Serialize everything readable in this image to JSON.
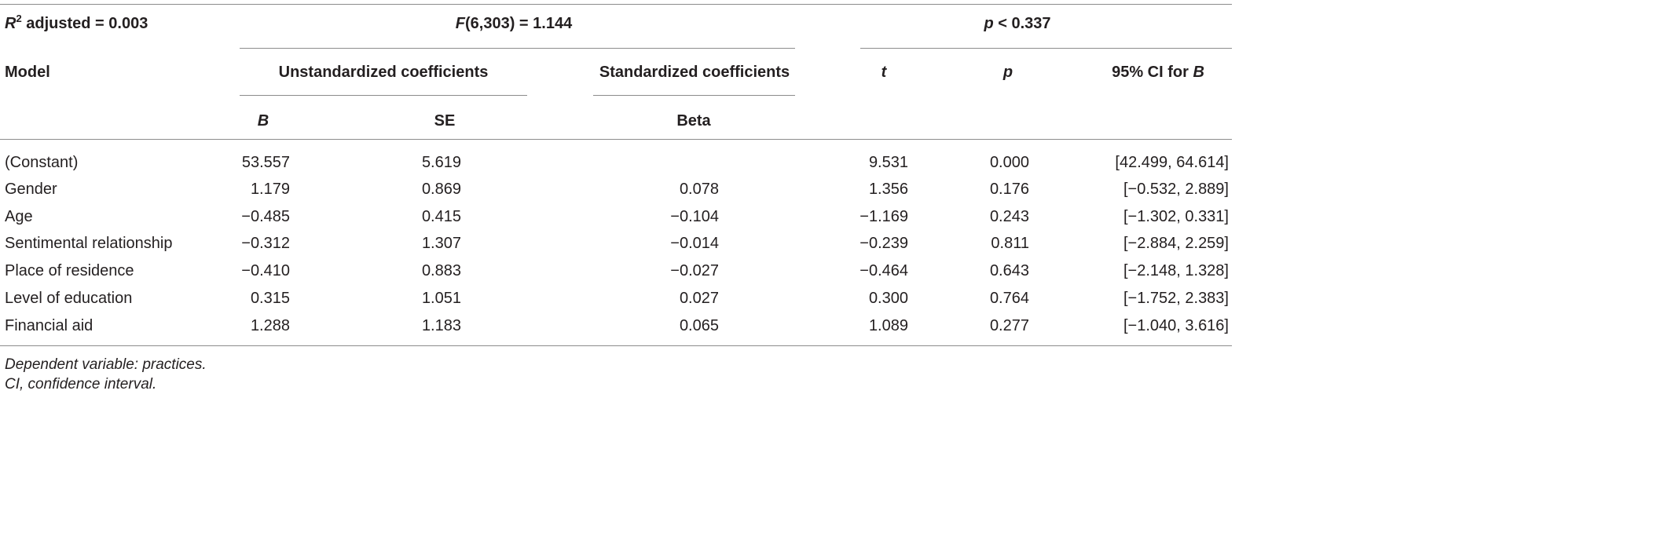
{
  "summary": {
    "r2_symbol": "R",
    "r2_sup": "2",
    "r2_rest": " adjusted = 0.003",
    "f_symbol": "F",
    "f_rest": "(6,303) = 1.144",
    "p_symbol": "p",
    "p_rest": " < 0.337"
  },
  "headers": {
    "model": "Model",
    "unstd": "Unstandardized coefficients",
    "std": "Standardized coefficients",
    "t": "t",
    "p": "p",
    "ci_prefix": "95% CI for ",
    "ci_b": "B",
    "b": "B",
    "se": "SE",
    "beta": "Beta"
  },
  "rows": [
    {
      "model": "(Constant)",
      "b": "53.557",
      "se": "5.619",
      "beta": "",
      "t": "9.531",
      "p": "0.000",
      "ci": "[42.499, 64.614]"
    },
    {
      "model": "Gender",
      "b": "1.179",
      "se": "0.869",
      "beta": "0.078",
      "t": "1.356",
      "p": "0.176",
      "ci": "[−0.532, 2.889]"
    },
    {
      "model": "Age",
      "b": "−0.485",
      "se": "0.415",
      "beta": "−0.104",
      "t": "−1.169",
      "p": "0.243",
      "ci": "[−1.302, 0.331]"
    },
    {
      "model": "Sentimental relationship",
      "b": "−0.312",
      "se": "1.307",
      "beta": "−0.014",
      "t": "−0.239",
      "p": "0.811",
      "ci": "[−2.884, 2.259]"
    },
    {
      "model": "Place of residence",
      "b": "−0.410",
      "se": "0.883",
      "beta": "−0.027",
      "t": "−0.464",
      "p": "0.643",
      "ci": "[−2.148, 1.328]"
    },
    {
      "model": "Level of education",
      "b": "0.315",
      "se": "1.051",
      "beta": "0.027",
      "t": "0.300",
      "p": "0.764",
      "ci": "[−1.752, 2.383]"
    },
    {
      "model": "Financial aid",
      "b": "1.288",
      "se": "1.183",
      "beta": "0.065",
      "t": "1.089",
      "p": "0.277",
      "ci": "[−1.040, 3.616]"
    }
  ],
  "notes": [
    "Dependent variable: practices.",
    "CI, confidence interval."
  ]
}
